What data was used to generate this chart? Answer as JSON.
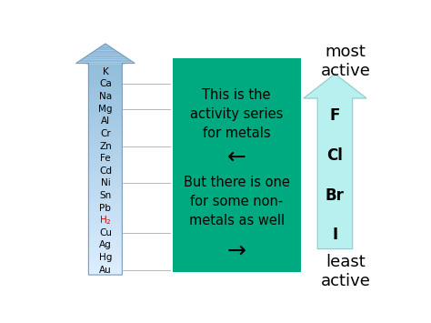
{
  "bg_color": "#ffffff",
  "metals": [
    "K",
    "Ca",
    "Na",
    "Mg",
    "Al",
    "Cr",
    "Zn",
    "Fe",
    "Cd",
    "Ni",
    "Sn",
    "Pb",
    "H2",
    "Cu",
    "Ag",
    "Hg",
    "Au"
  ],
  "h2_color": "#cc0000",
  "metals_color": "#000000",
  "left_arrow_color_top": "#8ab8d8",
  "left_arrow_color_bottom": "#ddeeff",
  "right_arrow_color": "#b8f0f0",
  "right_arrow_edge": "#88cccc",
  "green_box_color": "#00aa80",
  "green_box_text1": "This is the\nactivity series\nfor metals",
  "green_box_arrow_left": "←",
  "green_box_text2": "But there is one\nfor some non-\nmetals as well",
  "green_box_arrow_right": "→",
  "nonmetals": [
    "F",
    "Cl",
    "Br",
    "I"
  ],
  "most_active_text": "most\nactive",
  "least_active_text": "least\nactive",
  "text_color": "#000000",
  "line_color": "#aaaaaa",
  "tick_lines_at": [
    1,
    3,
    6,
    9,
    13,
    16
  ]
}
